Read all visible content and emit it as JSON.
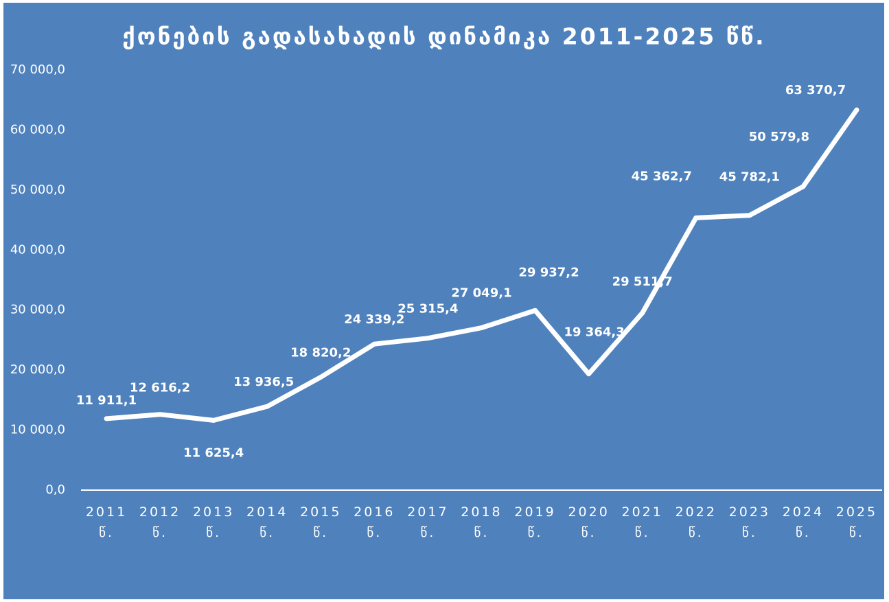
{
  "chart_data": {
    "type": "line",
    "title": "ქონების გადასახადის დინამიკა 2011-2025 წწ.",
    "categories": [
      "2011 წ.",
      "2012 წ.",
      "2013 წ.",
      "2014 წ.",
      "2015 წ.",
      "2016 წ.",
      "2017 წ.",
      "2018 წ.",
      "2019 წ.",
      "2020 წ.",
      "2021 წ.",
      "2022 წ.",
      "2023 წ.",
      "2024 წ.",
      "2025 წ."
    ],
    "series": [
      {
        "name": "ქონების გადასახადი",
        "color": "#ffffff",
        "values": [
          11911.1,
          12616.2,
          11625.4,
          13936.5,
          18820.2,
          24339.2,
          25315.4,
          27049.1,
          29937.2,
          19364.3,
          29511.7,
          45362.7,
          45782.1,
          50579.8,
          63370.7
        ],
        "value_labels": [
          "11 911,1",
          "12 616,2",
          "11 625,4",
          "13 936,5",
          "18 820,2",
          "24 339,2",
          "25 315,4",
          "27 049,1",
          "29 937,2",
          "19 364,3",
          "29 511,7",
          "45 362,7",
          "45 782,1",
          "50 579,8",
          "63 370,7"
        ]
      }
    ],
    "ylim": [
      0,
      70000
    ],
    "yticks": [
      {
        "value": 0,
        "label": "0,0"
      },
      {
        "value": 10000,
        "label": "10 000,0"
      },
      {
        "value": 20000,
        "label": "20 000,0"
      },
      {
        "value": 30000,
        "label": "30 000,0"
      },
      {
        "value": 40000,
        "label": "40 000,0"
      },
      {
        "value": 50000,
        "label": "50 000,0"
      },
      {
        "value": 60000,
        "label": "60 000,0"
      },
      {
        "value": 70000,
        "label": "70 000,0"
      }
    ],
    "grid": false
  }
}
